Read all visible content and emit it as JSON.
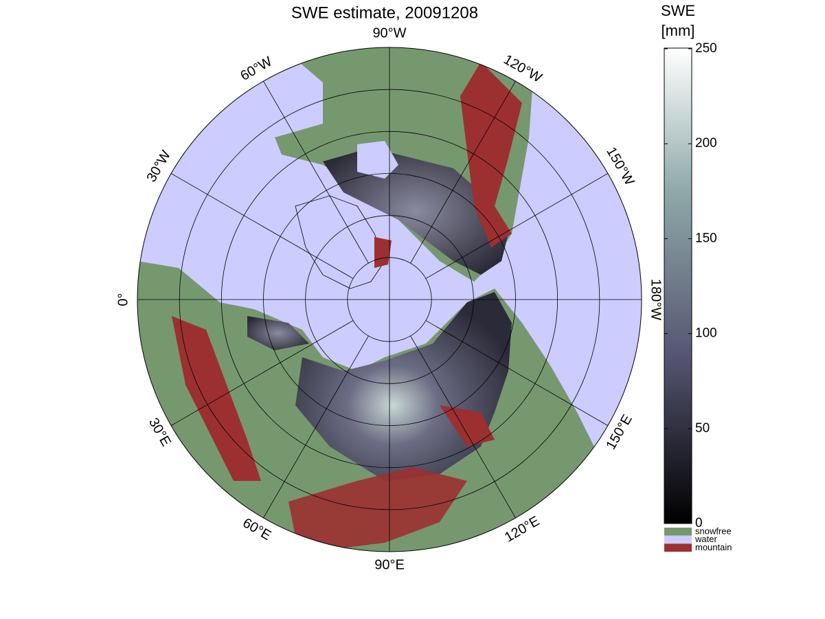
{
  "map": {
    "title": "SWE estimate, 20091208",
    "lon_labels": [
      "90°W",
      "120°W",
      "150°W",
      "180°W",
      "150°E",
      "120°E",
      "90°E",
      "60°E",
      "30°E",
      "0°",
      "30°W",
      "60°W"
    ]
  },
  "colorbar": {
    "title": [
      "SWE",
      "[mm]"
    ],
    "ylim": [
      0,
      250
    ],
    "yticks": [
      0,
      50,
      100,
      150,
      200,
      250
    ],
    "legend": [
      {
        "name": "snowfree",
        "color": "#76986f"
      },
      {
        "name": "water",
        "color": "#ccccff"
      },
      {
        "name": "mountain",
        "color": "#9c3030"
      }
    ]
  }
}
